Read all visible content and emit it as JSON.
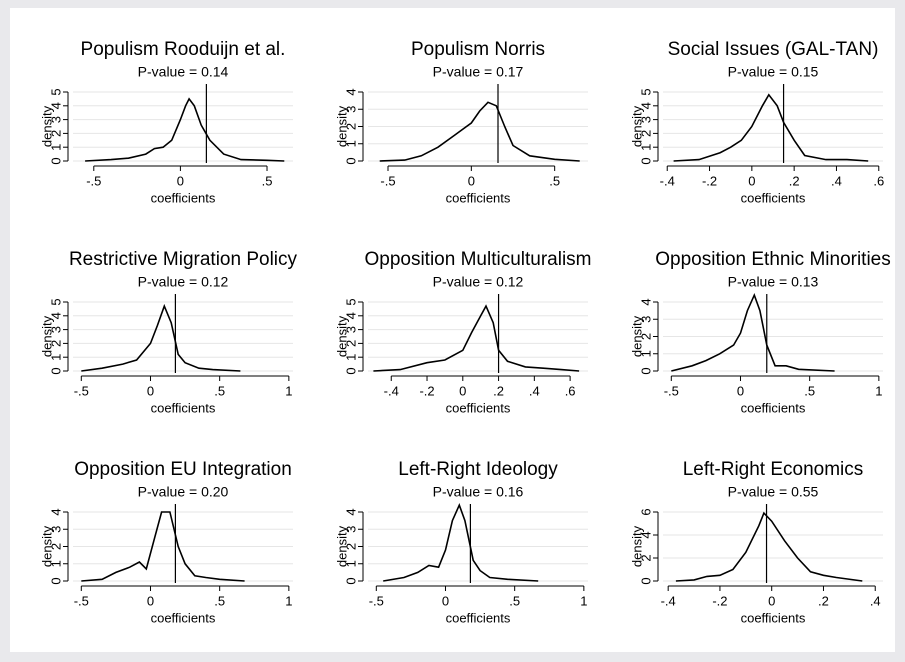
{
  "chart_data": [
    {
      "type": "line",
      "title": "Populism Rooduijn et al.",
      "subtitle": "P-value = 0.14",
      "x_label": "coefficients",
      "y_label": "density",
      "color": "#000000",
      "grid": true,
      "x": [
        -0.55,
        -0.4,
        -0.3,
        -0.2,
        -0.15,
        -0.1,
        -0.05,
        0,
        0.03,
        0.05,
        0.08,
        0.12,
        0.17,
        0.25,
        0.35,
        0.5,
        0.6
      ],
      "values": [
        0,
        0.1,
        0.2,
        0.5,
        0.9,
        1.0,
        1.5,
        3,
        4.0,
        4.5,
        4,
        2.6,
        1.5,
        0.5,
        0.1,
        0.05,
        0
      ],
      "reference_x": 0.15,
      "xlim": [
        -0.62,
        0.65
      ],
      "xticks": [
        {
          "value": -0.5,
          "label": "-.5"
        },
        0,
        {
          "value": 0.5,
          "label": ".5"
        }
      ],
      "ylim": [
        0,
        5
      ],
      "yticks": [
        0,
        1,
        2,
        3,
        4,
        5
      ]
    },
    {
      "type": "line",
      "title": "Populism Norris",
      "subtitle": "P-value = 0.17",
      "x_label": "coefficients",
      "y_label": "density",
      "color": "#000000",
      "grid": true,
      "x": [
        -0.55,
        -0.4,
        -0.3,
        -0.2,
        -0.1,
        0,
        0.05,
        0.1,
        0.15,
        0.2,
        0.25,
        0.35,
        0.5,
        0.65
      ],
      "values": [
        0,
        0.05,
        0.3,
        0.8,
        1.5,
        2.2,
        2.9,
        3.4,
        3.2,
        2,
        0.9,
        0.3,
        0.1,
        0
      ],
      "reference_x": 0.16,
      "xlim": [
        -0.62,
        0.7
      ],
      "xticks": [
        {
          "value": -0.5,
          "label": "-.5"
        },
        0,
        {
          "value": 0.5,
          "label": ".5"
        }
      ],
      "ylim": [
        0,
        4
      ],
      "yticks": [
        0,
        1,
        2,
        3,
        4
      ]
    },
    {
      "type": "line",
      "title": "Social Issues (GAL-TAN)",
      "subtitle": "P-value = 0.15",
      "x_label": "coefficients",
      "y_label": "density",
      "color": "#000000",
      "grid": true,
      "x": [
        -0.37,
        -0.25,
        -0.15,
        -0.1,
        -0.05,
        0,
        0.05,
        0.08,
        0.12,
        0.15,
        0.2,
        0.25,
        0.35,
        0.45,
        0.55
      ],
      "values": [
        0,
        0.1,
        0.6,
        1.0,
        1.5,
        2.5,
        4,
        4.8,
        4,
        2.8,
        1.5,
        0.4,
        0.1,
        0.1,
        0
      ],
      "reference_x": 0.15,
      "xlim": [
        -0.42,
        0.62
      ],
      "xticks": [
        {
          "value": -0.4,
          "label": "-.4"
        },
        {
          "value": -0.2,
          "label": "-.2"
        },
        0,
        {
          "value": 0.2,
          "label": ".2"
        },
        {
          "value": 0.4,
          "label": ".4"
        },
        {
          "value": 0.6,
          "label": ".6"
        }
      ],
      "ylim": [
        0,
        5
      ],
      "yticks": [
        0,
        1,
        2,
        3,
        4,
        5
      ]
    },
    {
      "type": "line",
      "title": "Restrictive Migration Policy",
      "subtitle": "P-value = 0.12",
      "x_label": "coefficients",
      "y_label": "density",
      "color": "#000000",
      "grid": true,
      "x": [
        -0.5,
        -0.35,
        -0.2,
        -0.1,
        0,
        0.05,
        0.1,
        0.15,
        0.2,
        0.25,
        0.35,
        0.45,
        0.65
      ],
      "values": [
        0,
        0.2,
        0.5,
        0.8,
        2,
        3.3,
        4.7,
        3.5,
        1.2,
        0.6,
        0.2,
        0.1,
        0
      ],
      "reference_x": 0.18,
      "xlim": [
        -0.56,
        1.03
      ],
      "xticks": [
        {
          "value": -0.5,
          "label": "-.5"
        },
        0,
        {
          "value": 0.5,
          "label": ".5"
        },
        1
      ],
      "ylim": [
        0,
        5
      ],
      "yticks": [
        0,
        1,
        2,
        3,
        4,
        5
      ]
    },
    {
      "type": "line",
      "title": "Opposition Multiculturalism",
      "subtitle": "P-value = 0.12",
      "x_label": "coefficients",
      "y_label": "density",
      "color": "#000000",
      "grid": true,
      "x": [
        -0.5,
        -0.35,
        -0.2,
        -0.1,
        0,
        0.05,
        0.1,
        0.13,
        0.17,
        0.2,
        0.25,
        0.35,
        0.45,
        0.55,
        0.65
      ],
      "values": [
        0,
        0.1,
        0.6,
        0.8,
        1.5,
        2.8,
        4,
        4.7,
        3.5,
        1.5,
        0.7,
        0.3,
        0.2,
        0.1,
        0
      ],
      "reference_x": 0.2,
      "xlim": [
        -0.53,
        0.7
      ],
      "xticks": [
        {
          "value": -0.4,
          "label": "-.4"
        },
        {
          "value": -0.2,
          "label": "-.2"
        },
        0,
        {
          "value": 0.2,
          "label": ".2"
        },
        {
          "value": 0.4,
          "label": ".4"
        },
        {
          "value": 0.6,
          "label": ".6"
        }
      ],
      "ylim": [
        0,
        5
      ],
      "yticks": [
        0,
        1,
        2,
        3,
        4,
        5
      ]
    },
    {
      "type": "line",
      "title": "Opposition Ethnic Minorities",
      "subtitle": "P-value = 0.13",
      "x_label": "coefficients",
      "y_label": "density",
      "color": "#000000",
      "grid": true,
      "x": [
        -0.5,
        -0.35,
        -0.25,
        -0.15,
        -0.05,
        0,
        0.05,
        0.1,
        0.14,
        0.19,
        0.25,
        0.33,
        0.42,
        0.68
      ],
      "values": [
        0,
        0.3,
        0.6,
        1,
        1.5,
        2.2,
        3.5,
        4.4,
        3.5,
        1.5,
        0.3,
        0.3,
        0.1,
        0
      ],
      "reference_x": 0.19,
      "xlim": [
        -0.56,
        1.03
      ],
      "xticks": [
        {
          "value": -0.5,
          "label": "-.5"
        },
        0,
        {
          "value": 0.5,
          "label": ".5"
        },
        1
      ],
      "ylim": [
        0,
        4
      ],
      "yticks": [
        0,
        1,
        2,
        3,
        4
      ]
    },
    {
      "type": "line",
      "title": "Opposition EU Integration",
      "subtitle": "P-value = 0.20",
      "x_label": "coefficients",
      "y_label": "density",
      "color": "#000000",
      "grid": true,
      "x": [
        -0.5,
        -0.35,
        -0.25,
        -0.15,
        -0.08,
        -0.03,
        0.03,
        0.08,
        0.14,
        0.2,
        0.25,
        0.32,
        0.4,
        0.5,
        0.68
      ],
      "values": [
        0,
        0.1,
        0.5,
        0.8,
        1.1,
        0.7,
        2.5,
        4,
        4,
        2,
        1,
        0.3,
        0.2,
        0.1,
        0
      ],
      "reference_x": 0.18,
      "xlim": [
        -0.56,
        1.03
      ],
      "xticks": [
        {
          "value": -0.5,
          "label": "-.5"
        },
        0,
        {
          "value": 0.5,
          "label": ".5"
        },
        1
      ],
      "ylim": [
        0,
        4
      ],
      "yticks": [
        0,
        1,
        2,
        3,
        4
      ]
    },
    {
      "type": "line",
      "title": "Left-Right Ideology",
      "subtitle": "P-value = 0.16",
      "x_label": "coefficients",
      "y_label": "density",
      "color": "#000000",
      "grid": true,
      "x": [
        -0.45,
        -0.3,
        -0.2,
        -0.12,
        -0.05,
        0,
        0.05,
        0.1,
        0.14,
        0.2,
        0.25,
        0.32,
        0.45,
        0.67
      ],
      "values": [
        0,
        0.2,
        0.5,
        0.9,
        0.8,
        1.8,
        3.5,
        4.4,
        3.5,
        1.2,
        0.6,
        0.2,
        0.1,
        0
      ],
      "reference_x": 0.18,
      "xlim": [
        -0.56,
        1.03
      ],
      "xticks": [
        {
          "value": -0.5,
          "label": "-.5"
        },
        0,
        {
          "value": 0.5,
          "label": ".5"
        },
        1
      ],
      "ylim": [
        0,
        4
      ],
      "yticks": [
        0,
        1,
        2,
        3,
        4
      ]
    },
    {
      "type": "line",
      "title": "Left-Right Economics",
      "subtitle": "P-value = 0.55",
      "x_label": "coefficients",
      "y_label": "density",
      "color": "#000000",
      "grid": true,
      "x": [
        -0.37,
        -0.3,
        -0.25,
        -0.2,
        -0.15,
        -0.1,
        -0.05,
        -0.03,
        0,
        0.05,
        0.1,
        0.15,
        0.2,
        0.25,
        0.35
      ],
      "values": [
        0,
        0.1,
        0.4,
        0.5,
        1,
        2.5,
        4.8,
        5.9,
        5.2,
        3.5,
        2,
        0.8,
        0.5,
        0.3,
        0
      ],
      "reference_x": -0.02,
      "xlim": [
        -0.42,
        0.43
      ],
      "xticks": [
        {
          "value": -0.4,
          "label": "-.4"
        },
        {
          "value": -0.2,
          "label": "-.2"
        },
        0,
        {
          "value": 0.2,
          "label": ".2"
        },
        {
          "value": 0.4,
          "label": ".4"
        }
      ],
      "ylim": [
        0,
        6
      ],
      "yticks": [
        0,
        2,
        4,
        6
      ]
    }
  ]
}
